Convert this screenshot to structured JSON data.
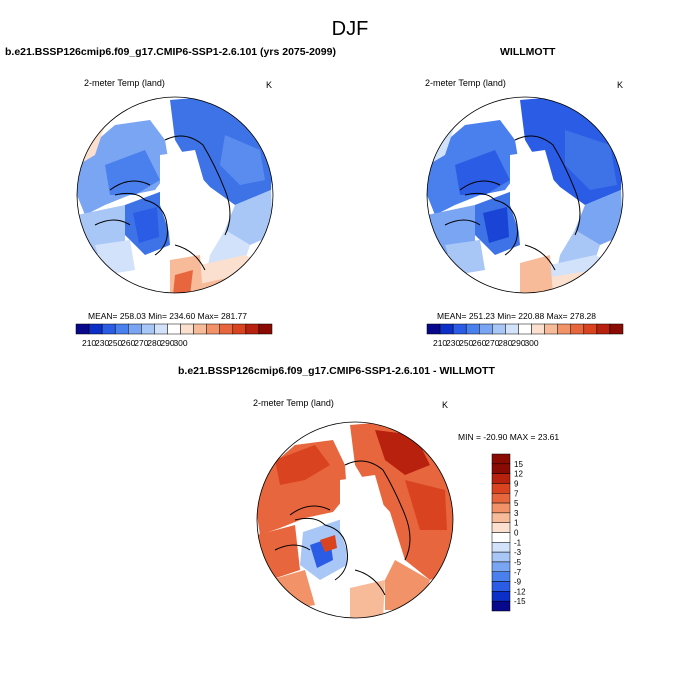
{
  "figure": {
    "title": "DJF"
  },
  "panels": [
    {
      "title": "b.e21.BSSP126cmip6.f09_g17.CMIP6-SSP1-2.6.101 (yrs 2075-2099)",
      "variable": "2-meter Temp (land)",
      "units": "K",
      "stats": "MEAN= 258.03  Min= 234.60  Max= 281.77"
    },
    {
      "title": "WILLMOTT",
      "variable": "2-meter Temp (land)",
      "units": "K",
      "stats": "MEAN= 251.23  Min= 220.88  Max= 278.28"
    },
    {
      "title": "b.e21.BSSP126cmip6.f09_g17.CMIP6-SSP1-2.6.101 - WILLMOTT",
      "variable": "2-meter Temp (land)",
      "units": "K",
      "stats": "MIN = -20.90 MAX =  23.61"
    }
  ],
  "colorbars": {
    "absolute": {
      "labels": [
        "210",
        "230",
        "250",
        "260",
        "270",
        "280",
        "290",
        "300"
      ],
      "colors": [
        "#08088c",
        "#0c2fc8",
        "#2a5ce6",
        "#4a80ee",
        "#7aa5f2",
        "#a8c6f6",
        "#d2e2fa",
        "#ffffff",
        "#fbe0cf",
        "#f7bb9a",
        "#f29268",
        "#e8663d",
        "#d9431f",
        "#b8210d",
        "#8a0a04"
      ]
    },
    "difference": {
      "labels": [
        "15",
        "12",
        "9",
        "7",
        "5",
        "3",
        "1",
        "0",
        "-1",
        "-3",
        "-5",
        "-7",
        "-9",
        "-12",
        "-15"
      ],
      "colors": [
        "#8a0a04",
        "#b8210d",
        "#d9431f",
        "#e8663d",
        "#f29268",
        "#f7bb9a",
        "#fbe0cf",
        "#ffffff",
        "#d2e2fa",
        "#a8c6f6",
        "#7aa5f2",
        "#4a80ee",
        "#2a5ce6",
        "#0c2fc8",
        "#08088c"
      ]
    }
  }
}
